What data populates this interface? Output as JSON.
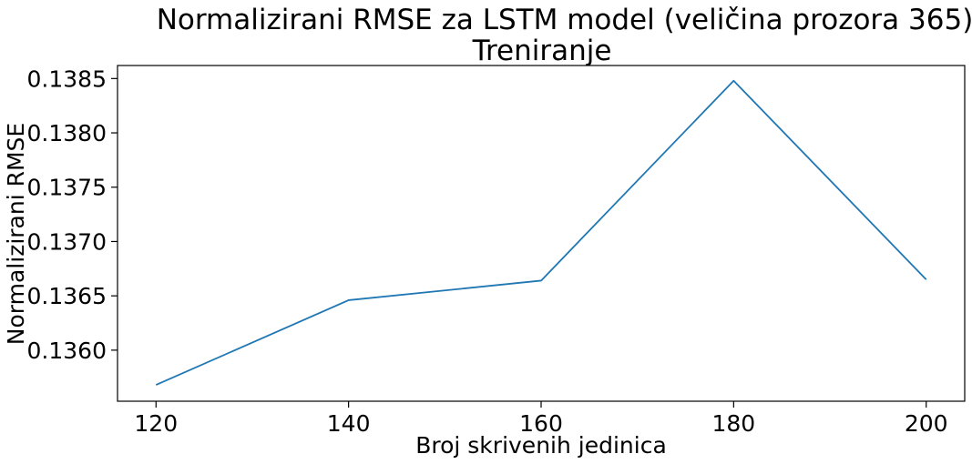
{
  "chart_data": {
    "type": "line",
    "title": "Normalizirani RMSE za LSTM model (veličina prozora 365)",
    "subtitle": "Treniranje",
    "xlabel": "Broj skrivenih jedinica",
    "ylabel": "Normalizirani RMSE",
    "x": [
      120,
      140,
      160,
      180,
      200
    ],
    "series": [
      {
        "values": [
          0.13568,
          0.13646,
          0.13664,
          0.13848,
          0.13665
        ],
        "color": "#1f77b4"
      }
    ],
    "xlim": [
      116,
      204
    ],
    "ylim": [
      0.13553,
      0.13862
    ],
    "xticks": [
      120,
      140,
      160,
      180,
      200
    ],
    "xtick_labels": [
      "120",
      "140",
      "160",
      "180",
      "200"
    ],
    "yticks": [
      0.136,
      0.1365,
      0.137,
      0.1375,
      0.138,
      0.1385
    ],
    "ytick_labels": [
      "0.1360",
      "0.1365",
      "0.1370",
      "0.1375",
      "0.1380",
      "0.1385"
    ],
    "grid": false,
    "legend": false
  }
}
